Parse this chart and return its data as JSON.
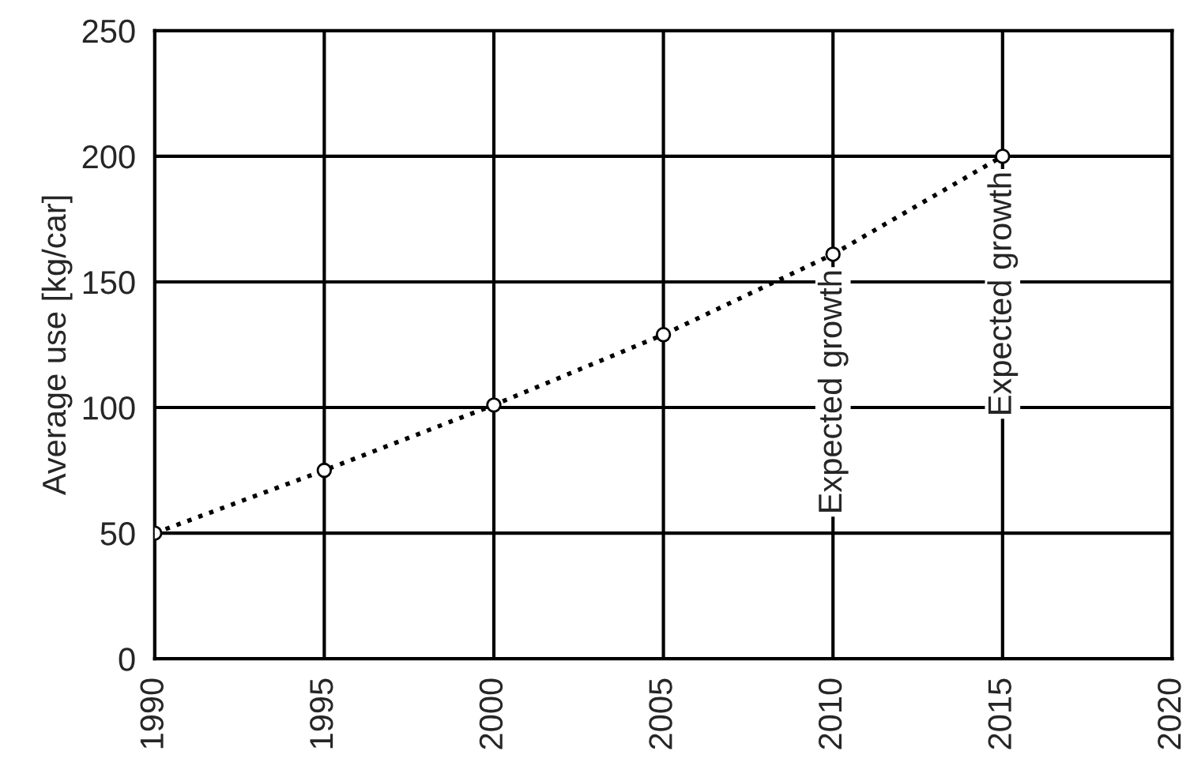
{
  "chart_data": {
    "type": "line",
    "ylabel": "Average use [kg/car]",
    "x": [
      1990,
      1995,
      2000,
      2005,
      2010,
      2015
    ],
    "series": [
      {
        "color": "#000000",
        "values": [
          50,
          75,
          101,
          129,
          161,
          200
        ]
      }
    ],
    "xlim": [
      1990,
      2020
    ],
    "xticks": [
      1990,
      1995,
      2000,
      2005,
      2010,
      2015,
      2020
    ],
    "ylim": [
      0,
      250
    ],
    "yticks": [
      0,
      50,
      100,
      150,
      200,
      250
    ],
    "grid": true,
    "marker": "circle",
    "line_style": "dotted",
    "annotations": [
      {
        "text": "Expected growth",
        "x": 2010,
        "y": 161
      },
      {
        "text": "Expected growth",
        "x": 2015,
        "y": 200
      }
    ]
  }
}
